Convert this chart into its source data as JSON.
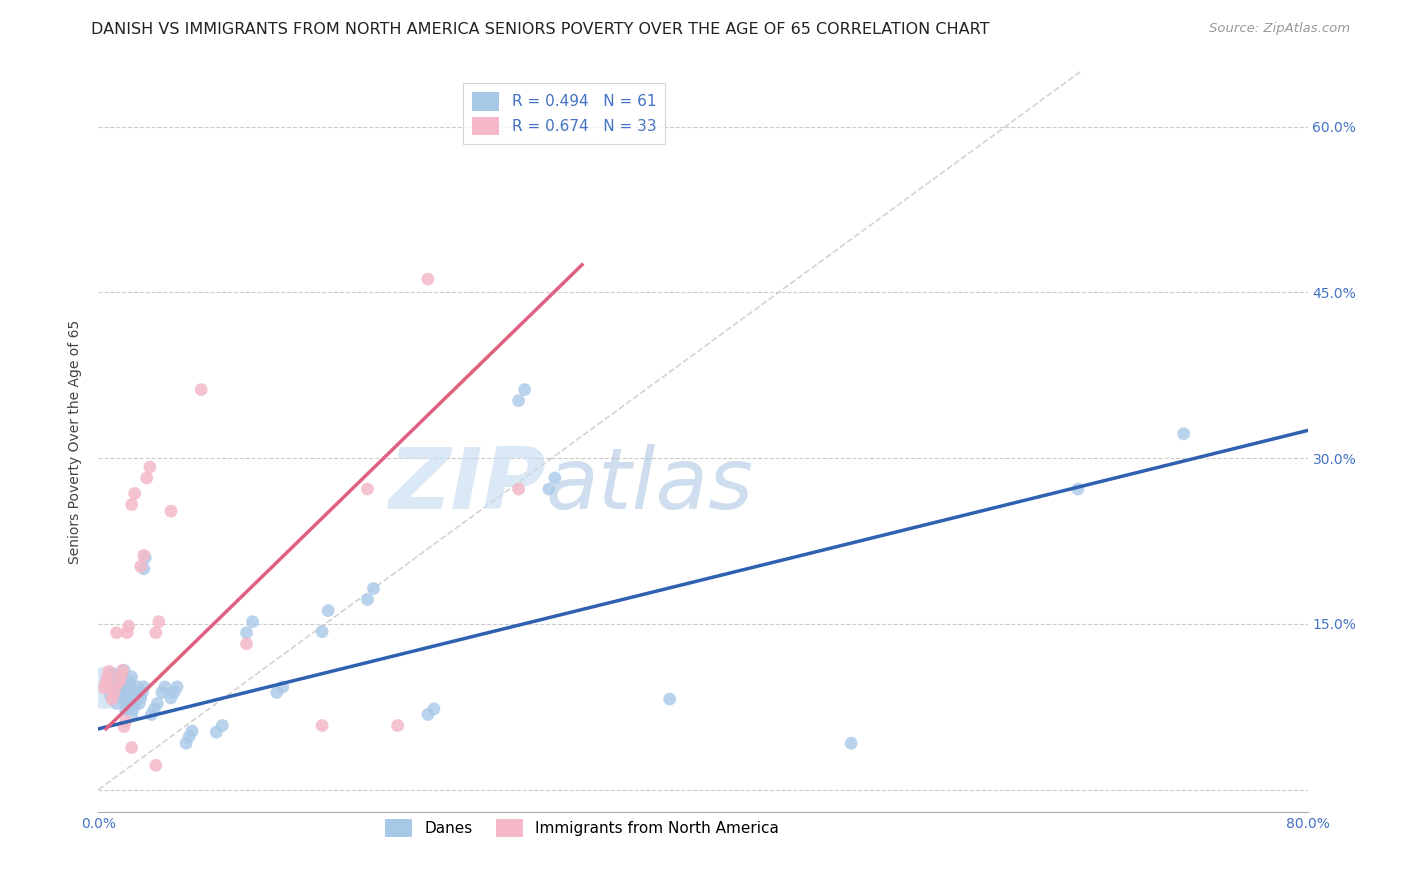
{
  "title": "DANISH VS IMMIGRANTS FROM NORTH AMERICA SENIORS POVERTY OVER THE AGE OF 65 CORRELATION CHART",
  "source": "Source: ZipAtlas.com",
  "ylabel": "Seniors Poverty Over the Age of 65",
  "xlim": [
    0.0,
    0.8
  ],
  "ylim": [
    -0.02,
    0.65
  ],
  "yticks": [
    0.0,
    0.15,
    0.3,
    0.45,
    0.6
  ],
  "xticks": [
    0.0,
    0.1,
    0.2,
    0.3,
    0.4,
    0.5,
    0.6,
    0.7,
    0.8
  ],
  "danes_color": "#a8c8e8",
  "immigrants_color": "#f4b8c8",
  "danes_line_color": "#3060b0",
  "immigrants_line_color": "#e06080",
  "danes_R": 0.494,
  "danes_N": 61,
  "immigrants_R": 0.674,
  "immigrants_N": 33,
  "diagonal_color": "#c8c8c8",
  "watermark_zip": "ZIP",
  "watermark_atlas": "atlas",
  "legend_blue_label": "Danes",
  "legend_pink_label": "Immigrants from North America",
  "danes_line": [
    0.0,
    0.8,
    0.055,
    0.325
  ],
  "immigrants_line": [
    0.005,
    0.32,
    0.055,
    0.475
  ],
  "danes_scatter": [
    [
      0.008,
      0.085
    ],
    [
      0.01,
      0.092
    ],
    [
      0.01,
      0.098
    ],
    [
      0.01,
      0.105
    ],
    [
      0.012,
      0.078
    ],
    [
      0.013,
      0.083
    ],
    [
      0.014,
      0.088
    ],
    [
      0.014,
      0.093
    ],
    [
      0.015,
      0.098
    ],
    [
      0.016,
      0.103
    ],
    [
      0.017,
      0.108
    ],
    [
      0.018,
      0.072
    ],
    [
      0.019,
      0.077
    ],
    [
      0.019,
      0.082
    ],
    [
      0.02,
      0.087
    ],
    [
      0.02,
      0.092
    ],
    [
      0.021,
      0.097
    ],
    [
      0.022,
      0.102
    ],
    [
      0.022,
      0.068
    ],
    [
      0.023,
      0.073
    ],
    [
      0.024,
      0.078
    ],
    [
      0.024,
      0.083
    ],
    [
      0.025,
      0.088
    ],
    [
      0.026,
      0.093
    ],
    [
      0.027,
      0.078
    ],
    [
      0.028,
      0.083
    ],
    [
      0.029,
      0.088
    ],
    [
      0.03,
      0.093
    ],
    [
      0.03,
      0.2
    ],
    [
      0.031,
      0.21
    ],
    [
      0.035,
      0.068
    ],
    [
      0.037,
      0.073
    ],
    [
      0.039,
      0.078
    ],
    [
      0.042,
      0.088
    ],
    [
      0.044,
      0.093
    ],
    [
      0.048,
      0.083
    ],
    [
      0.05,
      0.088
    ],
    [
      0.052,
      0.093
    ],
    [
      0.058,
      0.042
    ],
    [
      0.06,
      0.048
    ],
    [
      0.062,
      0.053
    ],
    [
      0.078,
      0.052
    ],
    [
      0.082,
      0.058
    ],
    [
      0.098,
      0.142
    ],
    [
      0.102,
      0.152
    ],
    [
      0.118,
      0.088
    ],
    [
      0.122,
      0.093
    ],
    [
      0.148,
      0.143
    ],
    [
      0.152,
      0.162
    ],
    [
      0.178,
      0.172
    ],
    [
      0.182,
      0.182
    ],
    [
      0.218,
      0.068
    ],
    [
      0.222,
      0.073
    ],
    [
      0.278,
      0.352
    ],
    [
      0.282,
      0.362
    ],
    [
      0.298,
      0.272
    ],
    [
      0.302,
      0.282
    ],
    [
      0.378,
      0.082
    ],
    [
      0.498,
      0.042
    ],
    [
      0.648,
      0.272
    ],
    [
      0.718,
      0.322
    ]
  ],
  "danes_large_dot": [
    0.004,
    0.092,
    900
  ],
  "immigrants_scatter": [
    [
      0.004,
      0.092
    ],
    [
      0.005,
      0.097
    ],
    [
      0.006,
      0.102
    ],
    [
      0.007,
      0.107
    ],
    [
      0.009,
      0.082
    ],
    [
      0.01,
      0.087
    ],
    [
      0.011,
      0.092
    ],
    [
      0.012,
      0.142
    ],
    [
      0.014,
      0.098
    ],
    [
      0.015,
      0.103
    ],
    [
      0.016,
      0.108
    ],
    [
      0.017,
      0.057
    ],
    [
      0.018,
      0.062
    ],
    [
      0.019,
      0.142
    ],
    [
      0.02,
      0.148
    ],
    [
      0.022,
      0.258
    ],
    [
      0.024,
      0.268
    ],
    [
      0.028,
      0.202
    ],
    [
      0.03,
      0.212
    ],
    [
      0.032,
      0.282
    ],
    [
      0.034,
      0.292
    ],
    [
      0.038,
      0.142
    ],
    [
      0.04,
      0.152
    ],
    [
      0.048,
      0.252
    ],
    [
      0.068,
      0.362
    ],
    [
      0.098,
      0.132
    ],
    [
      0.178,
      0.272
    ],
    [
      0.218,
      0.462
    ],
    [
      0.278,
      0.272
    ],
    [
      0.148,
      0.058
    ],
    [
      0.198,
      0.058
    ],
    [
      0.022,
      0.038
    ],
    [
      0.038,
      0.022
    ]
  ],
  "background_color": "#ffffff",
  "grid_color": "#cccccc",
  "title_fontsize": 11.5,
  "axis_label_fontsize": 10,
  "tick_fontsize": 10,
  "legend_fontsize": 11,
  "source_fontsize": 9.5
}
